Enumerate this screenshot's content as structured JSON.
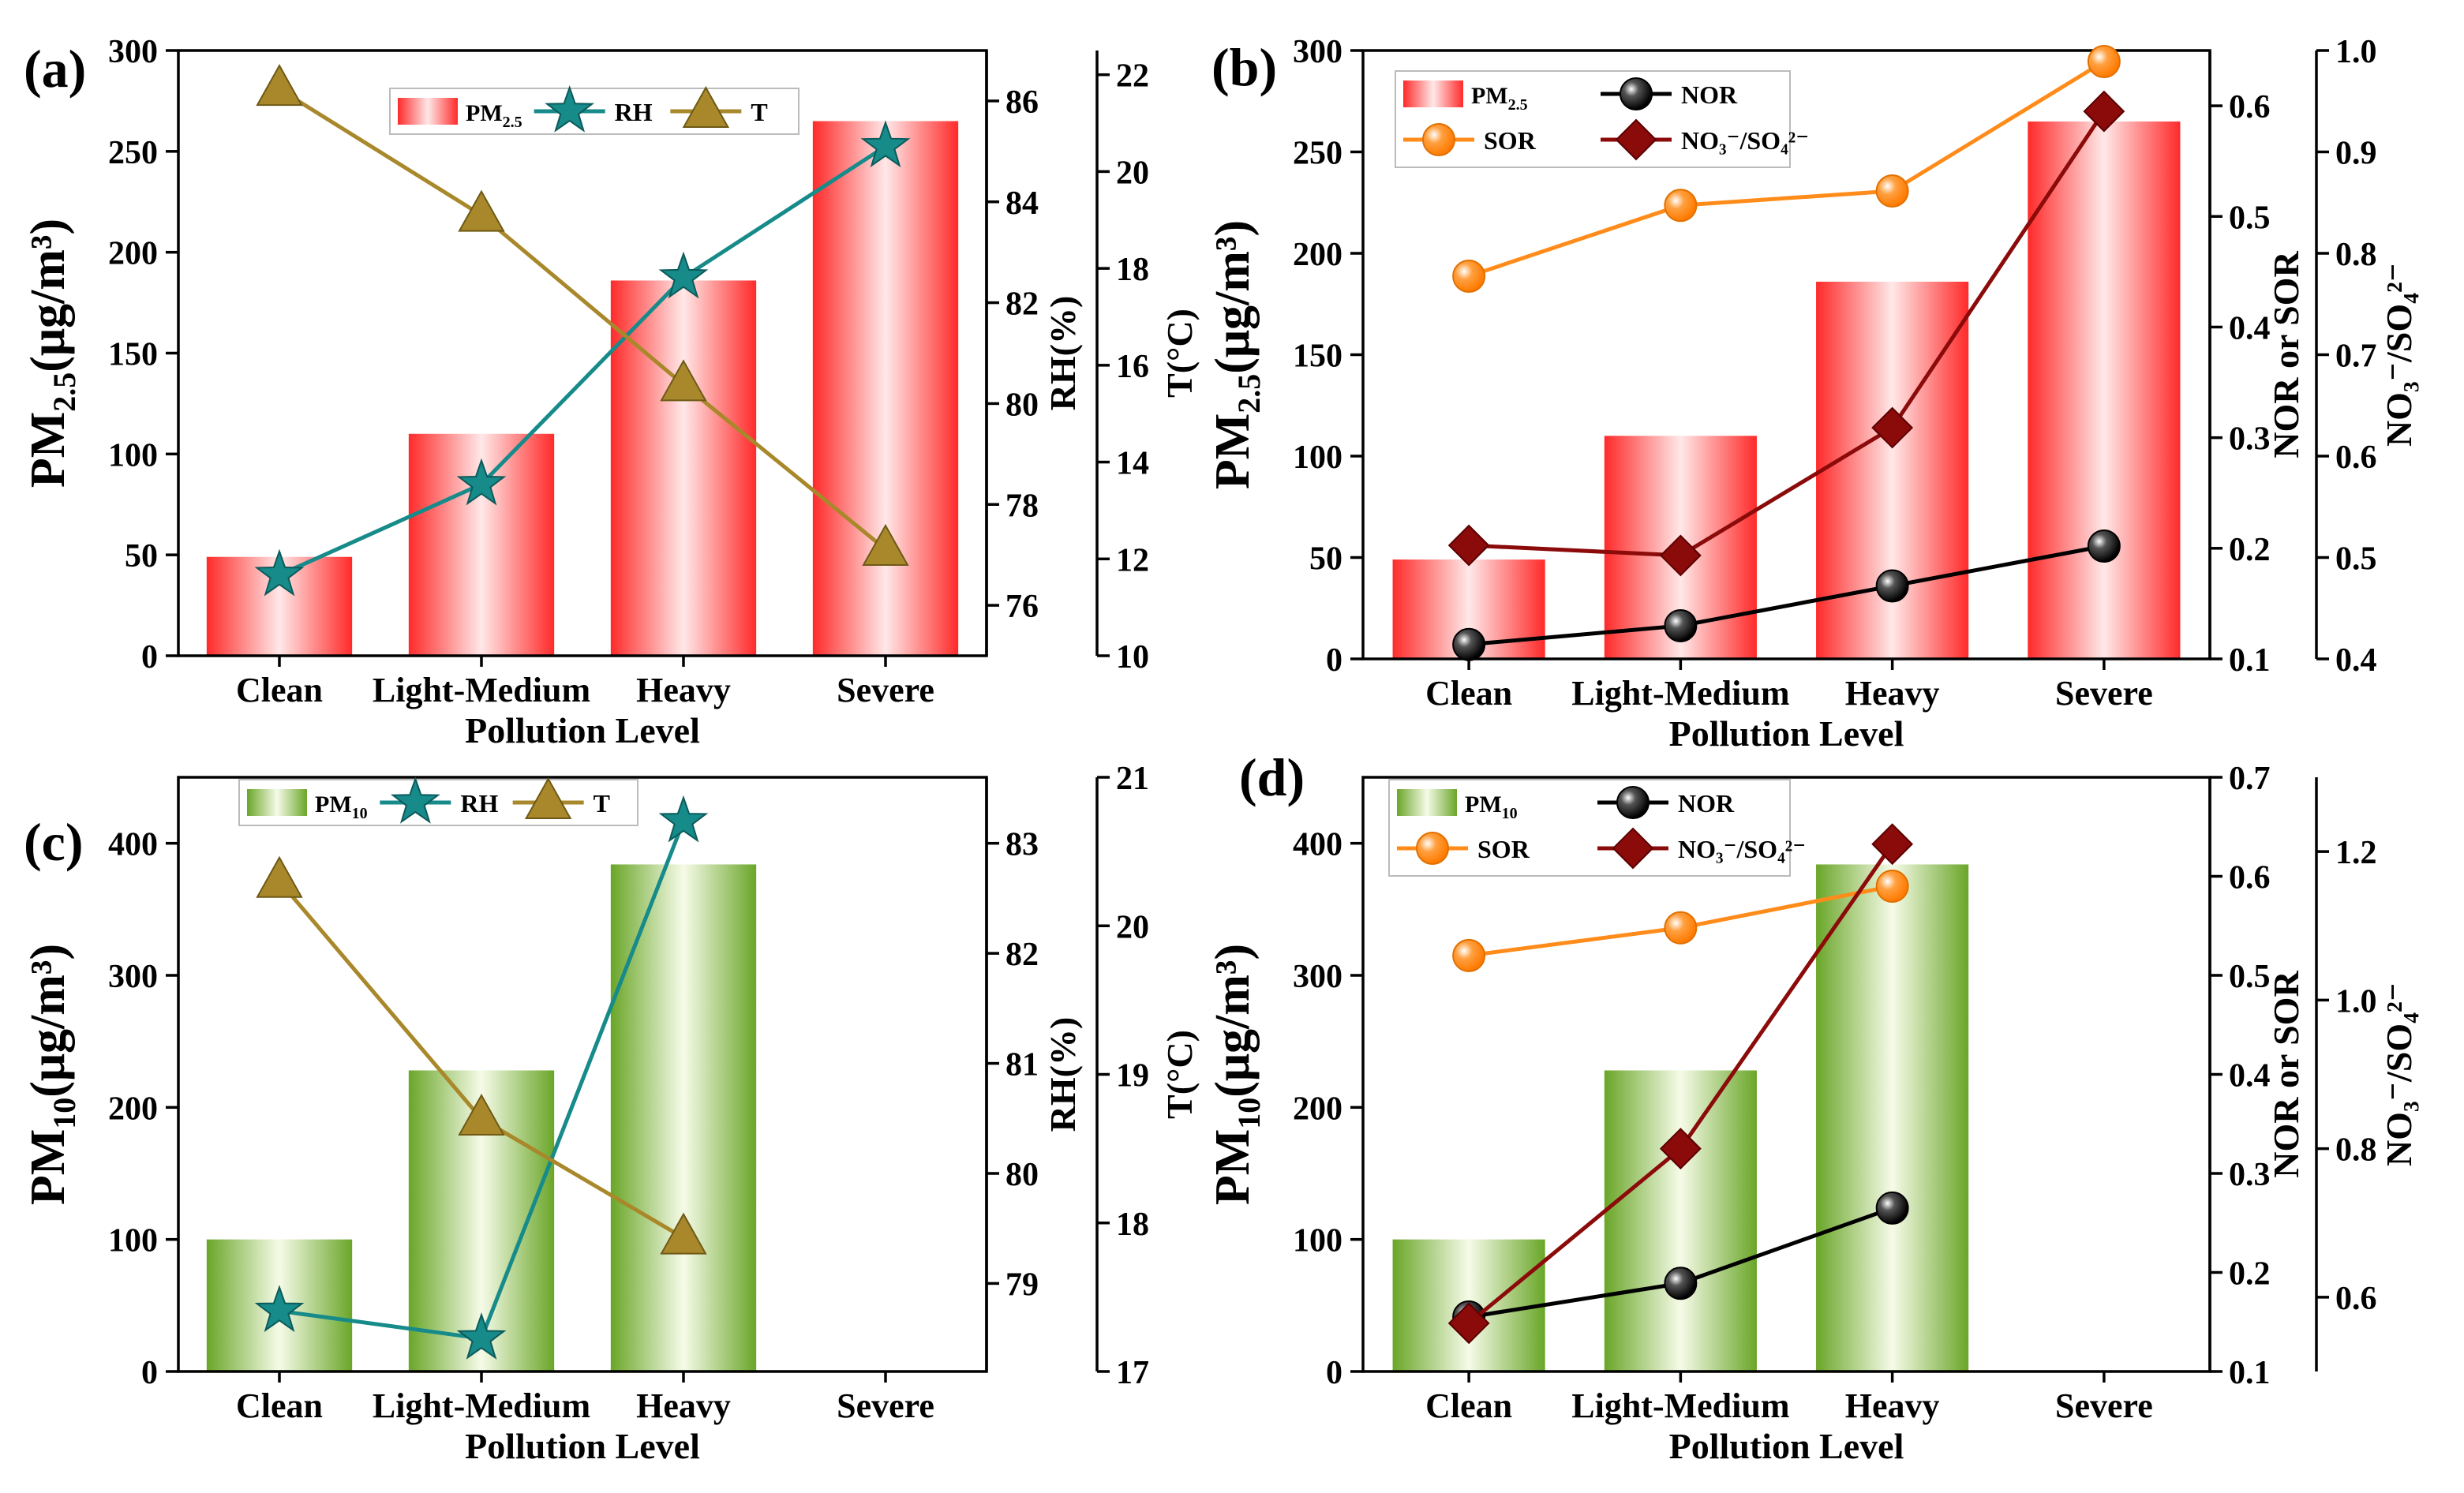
{
  "chart_data": [
    {
      "panel": "(a)",
      "type": "bar",
      "categories": [
        "Clean",
        "Light-Medium",
        "Heavy",
        "Severe"
      ],
      "xlabel": "Pollution Level",
      "bar_series": {
        "name": "PM",
        "sub": "2.5",
        "values": [
          49,
          110,
          186,
          265
        ],
        "color_top": "#ff2a2a",
        "color_mid": "#ffe8e8"
      },
      "left_axis": {
        "label_main": "PM",
        "label_sub": "2.5",
        "label_unit": "(μg/m³)",
        "range": [
          0,
          300
        ],
        "ticks": [
          0,
          50,
          100,
          150,
          200,
          250,
          300
        ]
      },
      "right_axes": [
        {
          "label": "RH(%)",
          "range": [
            75,
            87
          ],
          "ticks": [
            76,
            78,
            80,
            82,
            84,
            86
          ]
        },
        {
          "label": "T(°C)",
          "range": [
            10,
            22.5
          ],
          "ticks": [
            10,
            12,
            14,
            16,
            18,
            20,
            22
          ]
        }
      ],
      "line_series": [
        {
          "name": "RH",
          "axis": 0,
          "marker": "star",
          "color": "#178a8a",
          "values": [
            76.6,
            78.4,
            82.5,
            85.1
          ]
        },
        {
          "name": "T",
          "axis": 1,
          "marker": "triangle",
          "color": "#a8882a",
          "values": [
            21.7,
            19.1,
            15.6,
            12.2
          ]
        }
      ],
      "legend": {
        "position": "top-center",
        "entries": [
          "PM",
          "RH",
          "T"
        ]
      }
    },
    {
      "panel": "(b)",
      "type": "bar",
      "categories": [
        "Clean",
        "Light-Medium",
        "Heavy",
        "Severe"
      ],
      "xlabel": "Pollution Level",
      "bar_series": {
        "name": "PM",
        "sub": "2.5",
        "values": [
          49,
          110,
          186,
          265
        ],
        "color_top": "#ff2a2a",
        "color_mid": "#ffe8e8"
      },
      "left_axis": {
        "label_main": "PM",
        "label_sub": "2.5",
        "label_unit": "(μg/m³)",
        "range": [
          0,
          300
        ],
        "ticks": [
          0,
          50,
          100,
          150,
          200,
          250,
          300
        ]
      },
      "right_axes": [
        {
          "label": "NOR or SOR",
          "range": [
            0.1,
            0.65
          ],
          "ticks": [
            0.1,
            0.2,
            0.3,
            0.4,
            0.5,
            0.6
          ]
        },
        {
          "label": "NO₃⁻/SO₄²⁻",
          "range": [
            0.4,
            1.0
          ],
          "ticks": [
            0.4,
            0.5,
            0.6,
            0.7,
            0.8,
            0.9,
            1.0
          ]
        }
      ],
      "line_series": [
        {
          "name": "NOR",
          "axis": 0,
          "marker": "ball",
          "color": "#000000",
          "values": [
            0.113,
            0.13,
            0.166,
            0.202
          ]
        },
        {
          "name": "SOR",
          "axis": 0,
          "marker": "orangeball",
          "color": "#ff8c1a",
          "values": [
            0.446,
            0.51,
            0.523,
            0.64
          ]
        },
        {
          "name": "NO₃⁻/SO₄²⁻",
          "axis": 1,
          "marker": "diamond",
          "color": "#8b0a0a",
          "values": [
            0.512,
            0.502,
            0.628,
            0.94
          ]
        }
      ],
      "legend": {
        "position": "top-left",
        "entries": [
          "PM",
          "NOR",
          "SOR",
          "NO₃⁻/SO₄²⁻"
        ]
      }
    },
    {
      "panel": "(c)",
      "type": "bar",
      "categories": [
        "Clean",
        "Light-Medium",
        "Heavy",
        "Severe"
      ],
      "xlabel": "Pollution Level",
      "bar_series": {
        "name": "PM",
        "sub": "10",
        "values": [
          100,
          228,
          384,
          null
        ],
        "color_top": "#6aa629",
        "color_mid": "#f6fbe8"
      },
      "left_axis": {
        "label_main": "PM",
        "label_sub": "10",
        "label_unit": "(μg/m³)",
        "range": [
          0,
          450
        ],
        "ticks": [
          0,
          100,
          200,
          300,
          400
        ]
      },
      "right_axes": [
        {
          "label": "RH(%)",
          "range": [
            78.2,
            83.6
          ],
          "ticks": [
            79,
            80,
            81,
            82,
            83
          ]
        },
        {
          "label": "T(°C)",
          "range": [
            17,
            21
          ],
          "ticks": [
            17,
            18,
            19,
            20,
            21
          ]
        }
      ],
      "line_series": [
        {
          "name": "RH",
          "axis": 0,
          "marker": "star",
          "color": "#178a8a",
          "values": [
            78.75,
            78.5,
            83.2,
            null
          ]
        },
        {
          "name": "T",
          "axis": 1,
          "marker": "triangle",
          "color": "#a8882a",
          "values": [
            20.3,
            18.7,
            17.9,
            null
          ]
        }
      ],
      "legend": {
        "position": "top-left",
        "entries": [
          "PM",
          "RH",
          "T"
        ]
      }
    },
    {
      "panel": "(d)",
      "type": "bar",
      "categories": [
        "Clean",
        "Light-Medium",
        "Heavy",
        "Severe"
      ],
      "xlabel": "Pollution Level",
      "bar_series": {
        "name": "PM",
        "sub": "10",
        "values": [
          100,
          228,
          384,
          null
        ],
        "color_top": "#6aa629",
        "color_mid": "#f6fbe8"
      },
      "left_axis": {
        "label_main": "PM",
        "label_sub": "10",
        "label_unit": "(μg/m³)",
        "range": [
          0,
          450
        ],
        "ticks": [
          0,
          100,
          200,
          300,
          400
        ]
      },
      "right_axes": [
        {
          "label": "NOR or SOR",
          "range": [
            0.1,
            0.7
          ],
          "ticks": [
            0.1,
            0.2,
            0.3,
            0.4,
            0.5,
            0.6,
            0.7
          ]
        },
        {
          "label": "NO₃⁻/SO₄²⁻",
          "range": [
            0.5,
            1.3
          ],
          "ticks": [
            0.6,
            0.8,
            1.0,
            1.2
          ]
        }
      ],
      "line_series": [
        {
          "name": "NOR",
          "axis": 0,
          "marker": "ball",
          "color": "#000000",
          "values": [
            0.155,
            0.189,
            0.265,
            null
          ]
        },
        {
          "name": "SOR",
          "axis": 0,
          "marker": "orangeball",
          "color": "#ff8c1a",
          "values": [
            0.52,
            0.548,
            0.59,
            null
          ]
        },
        {
          "name": "NO₃⁻/SO₄²⁻",
          "axis": 1,
          "marker": "diamond",
          "color": "#8b0a0a",
          "values": [
            0.565,
            0.8,
            1.21,
            null
          ]
        }
      ],
      "legend": {
        "position": "top-left",
        "entries": [
          "PM",
          "NOR",
          "SOR",
          "NO₃⁻/SO₄²⁻"
        ]
      }
    }
  ]
}
